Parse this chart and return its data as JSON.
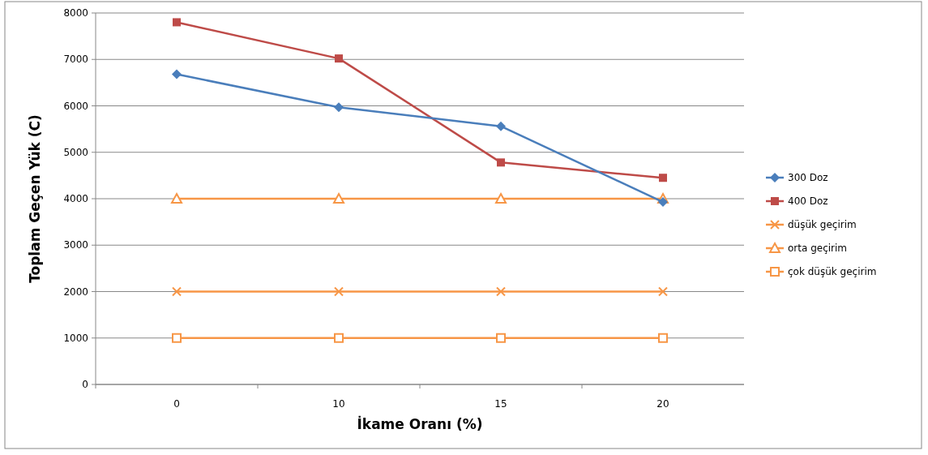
{
  "chart_data": {
    "type": "line",
    "xlabel": "İkame Oranı (%)",
    "ylabel": "Toplam Geçen Yük (C)",
    "categories": [
      "0",
      "10",
      "15",
      "20"
    ],
    "ylim": [
      0,
      8000
    ],
    "yticks": [
      0,
      1000,
      2000,
      3000,
      4000,
      5000,
      6000,
      7000,
      8000
    ],
    "grid": "y",
    "legend": "right",
    "series": [
      {
        "name": "300 Doz",
        "color": "#4a7ebb",
        "marker": "diamond",
        "values": [
          6680,
          5970,
          5560,
          3930
        ]
      },
      {
        "name": "400 Doz",
        "color": "#be4b48",
        "marker": "square",
        "values": [
          7800,
          7020,
          4780,
          4450
        ]
      },
      {
        "name": "düşük geçirim",
        "color": "#f79646",
        "marker": "cross",
        "values": [
          2000,
          2000,
          2000,
          2000
        ]
      },
      {
        "name": "orta geçirim",
        "color": "#f79646",
        "marker": "triangle",
        "values": [
          4000,
          4000,
          4000,
          4000
        ]
      },
      {
        "name": "çok düşük geçirim",
        "color": "#f79646",
        "marker": "square",
        "values": [
          1000,
          1000,
          1000,
          1000
        ]
      }
    ]
  }
}
